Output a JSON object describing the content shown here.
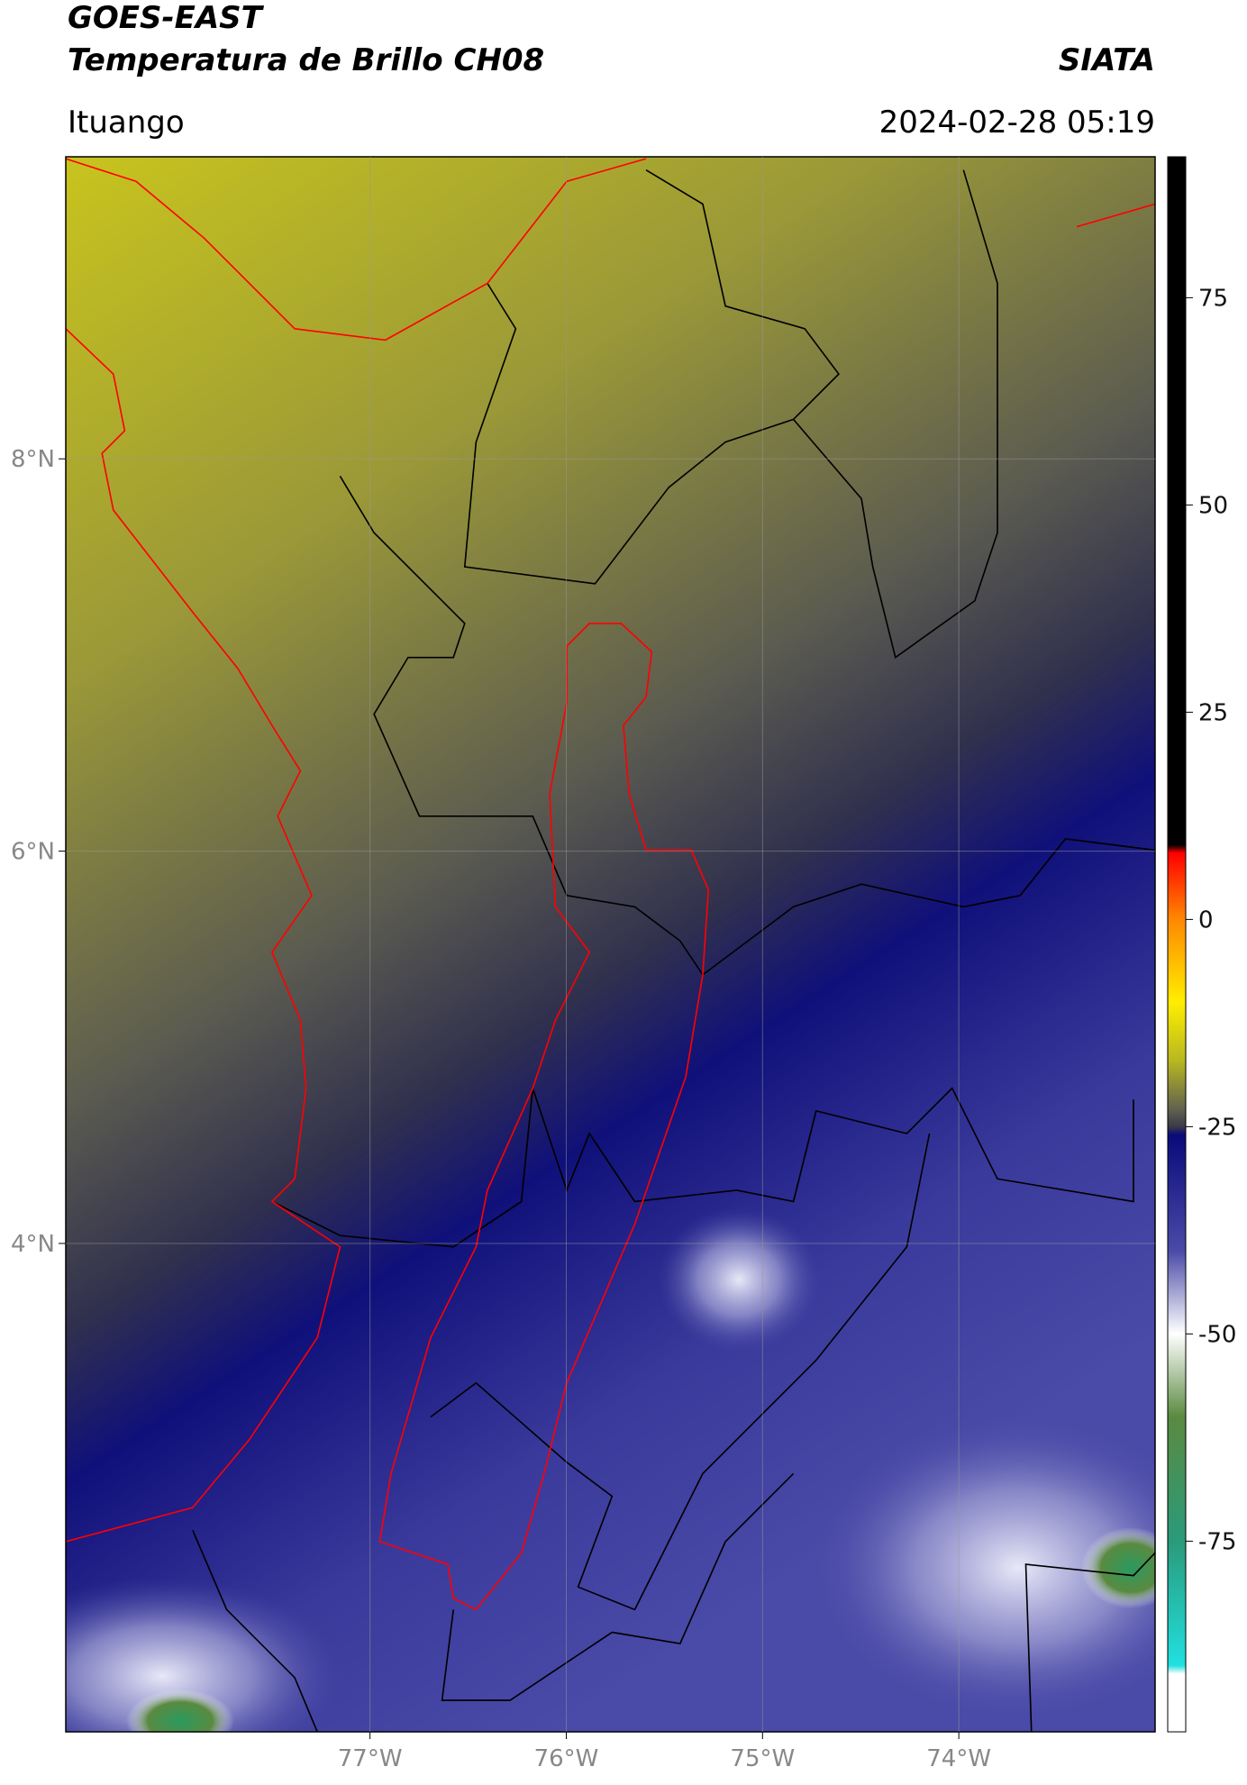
{
  "header": {
    "title": "GOES-EAST",
    "subtitle": "Temperatura de Brillo CH08",
    "source": "SIATA",
    "region": "Ituango",
    "datetime": "2024-02-28 05:19"
  },
  "map": {
    "xlim": [
      -78.55,
      -73.0
    ],
    "ylim": [
      1.51,
      9.54
    ],
    "xticks": [
      {
        "value": -77,
        "label": "77°W"
      },
      {
        "value": -76,
        "label": "76°W"
      },
      {
        "value": -75,
        "label": "75°W"
      },
      {
        "value": -74,
        "label": "74°W"
      }
    ],
    "yticks": [
      {
        "value": 4,
        "label": "4°N"
      },
      {
        "value": 6,
        "label": "6°N"
      },
      {
        "value": 8,
        "label": "8°N"
      }
    ],
    "grid": true
  },
  "colorbar": {
    "clim": [
      -98,
      92
    ],
    "ticks": [
      -75,
      -50,
      -25,
      0,
      25,
      50,
      75
    ],
    "colormap": [
      {
        "value": 92,
        "color": "#000000"
      },
      {
        "value": 9,
        "color": "#000000"
      },
      {
        "value": 8,
        "color": "#ff0000"
      },
      {
        "value": 0,
        "color": "#ff8800"
      },
      {
        "value": -10,
        "color": "#ffee00"
      },
      {
        "value": -17,
        "color": "#b8b820"
      },
      {
        "value": -23,
        "color": "#606050"
      },
      {
        "value": -25,
        "color": "#3a3a48"
      },
      {
        "value": -26,
        "color": "#0a0a7a"
      },
      {
        "value": -40,
        "color": "#4a4aa8"
      },
      {
        "value": -50,
        "color": "#ffffff"
      },
      {
        "value": -60,
        "color": "#5a8a40"
      },
      {
        "value": -75,
        "color": "#2a9a7a"
      },
      {
        "value": -90,
        "color": "#20e0e0"
      },
      {
        "value": -91,
        "color": "#ffffff"
      },
      {
        "value": -98,
        "color": "#ffffff"
      }
    ]
  }
}
